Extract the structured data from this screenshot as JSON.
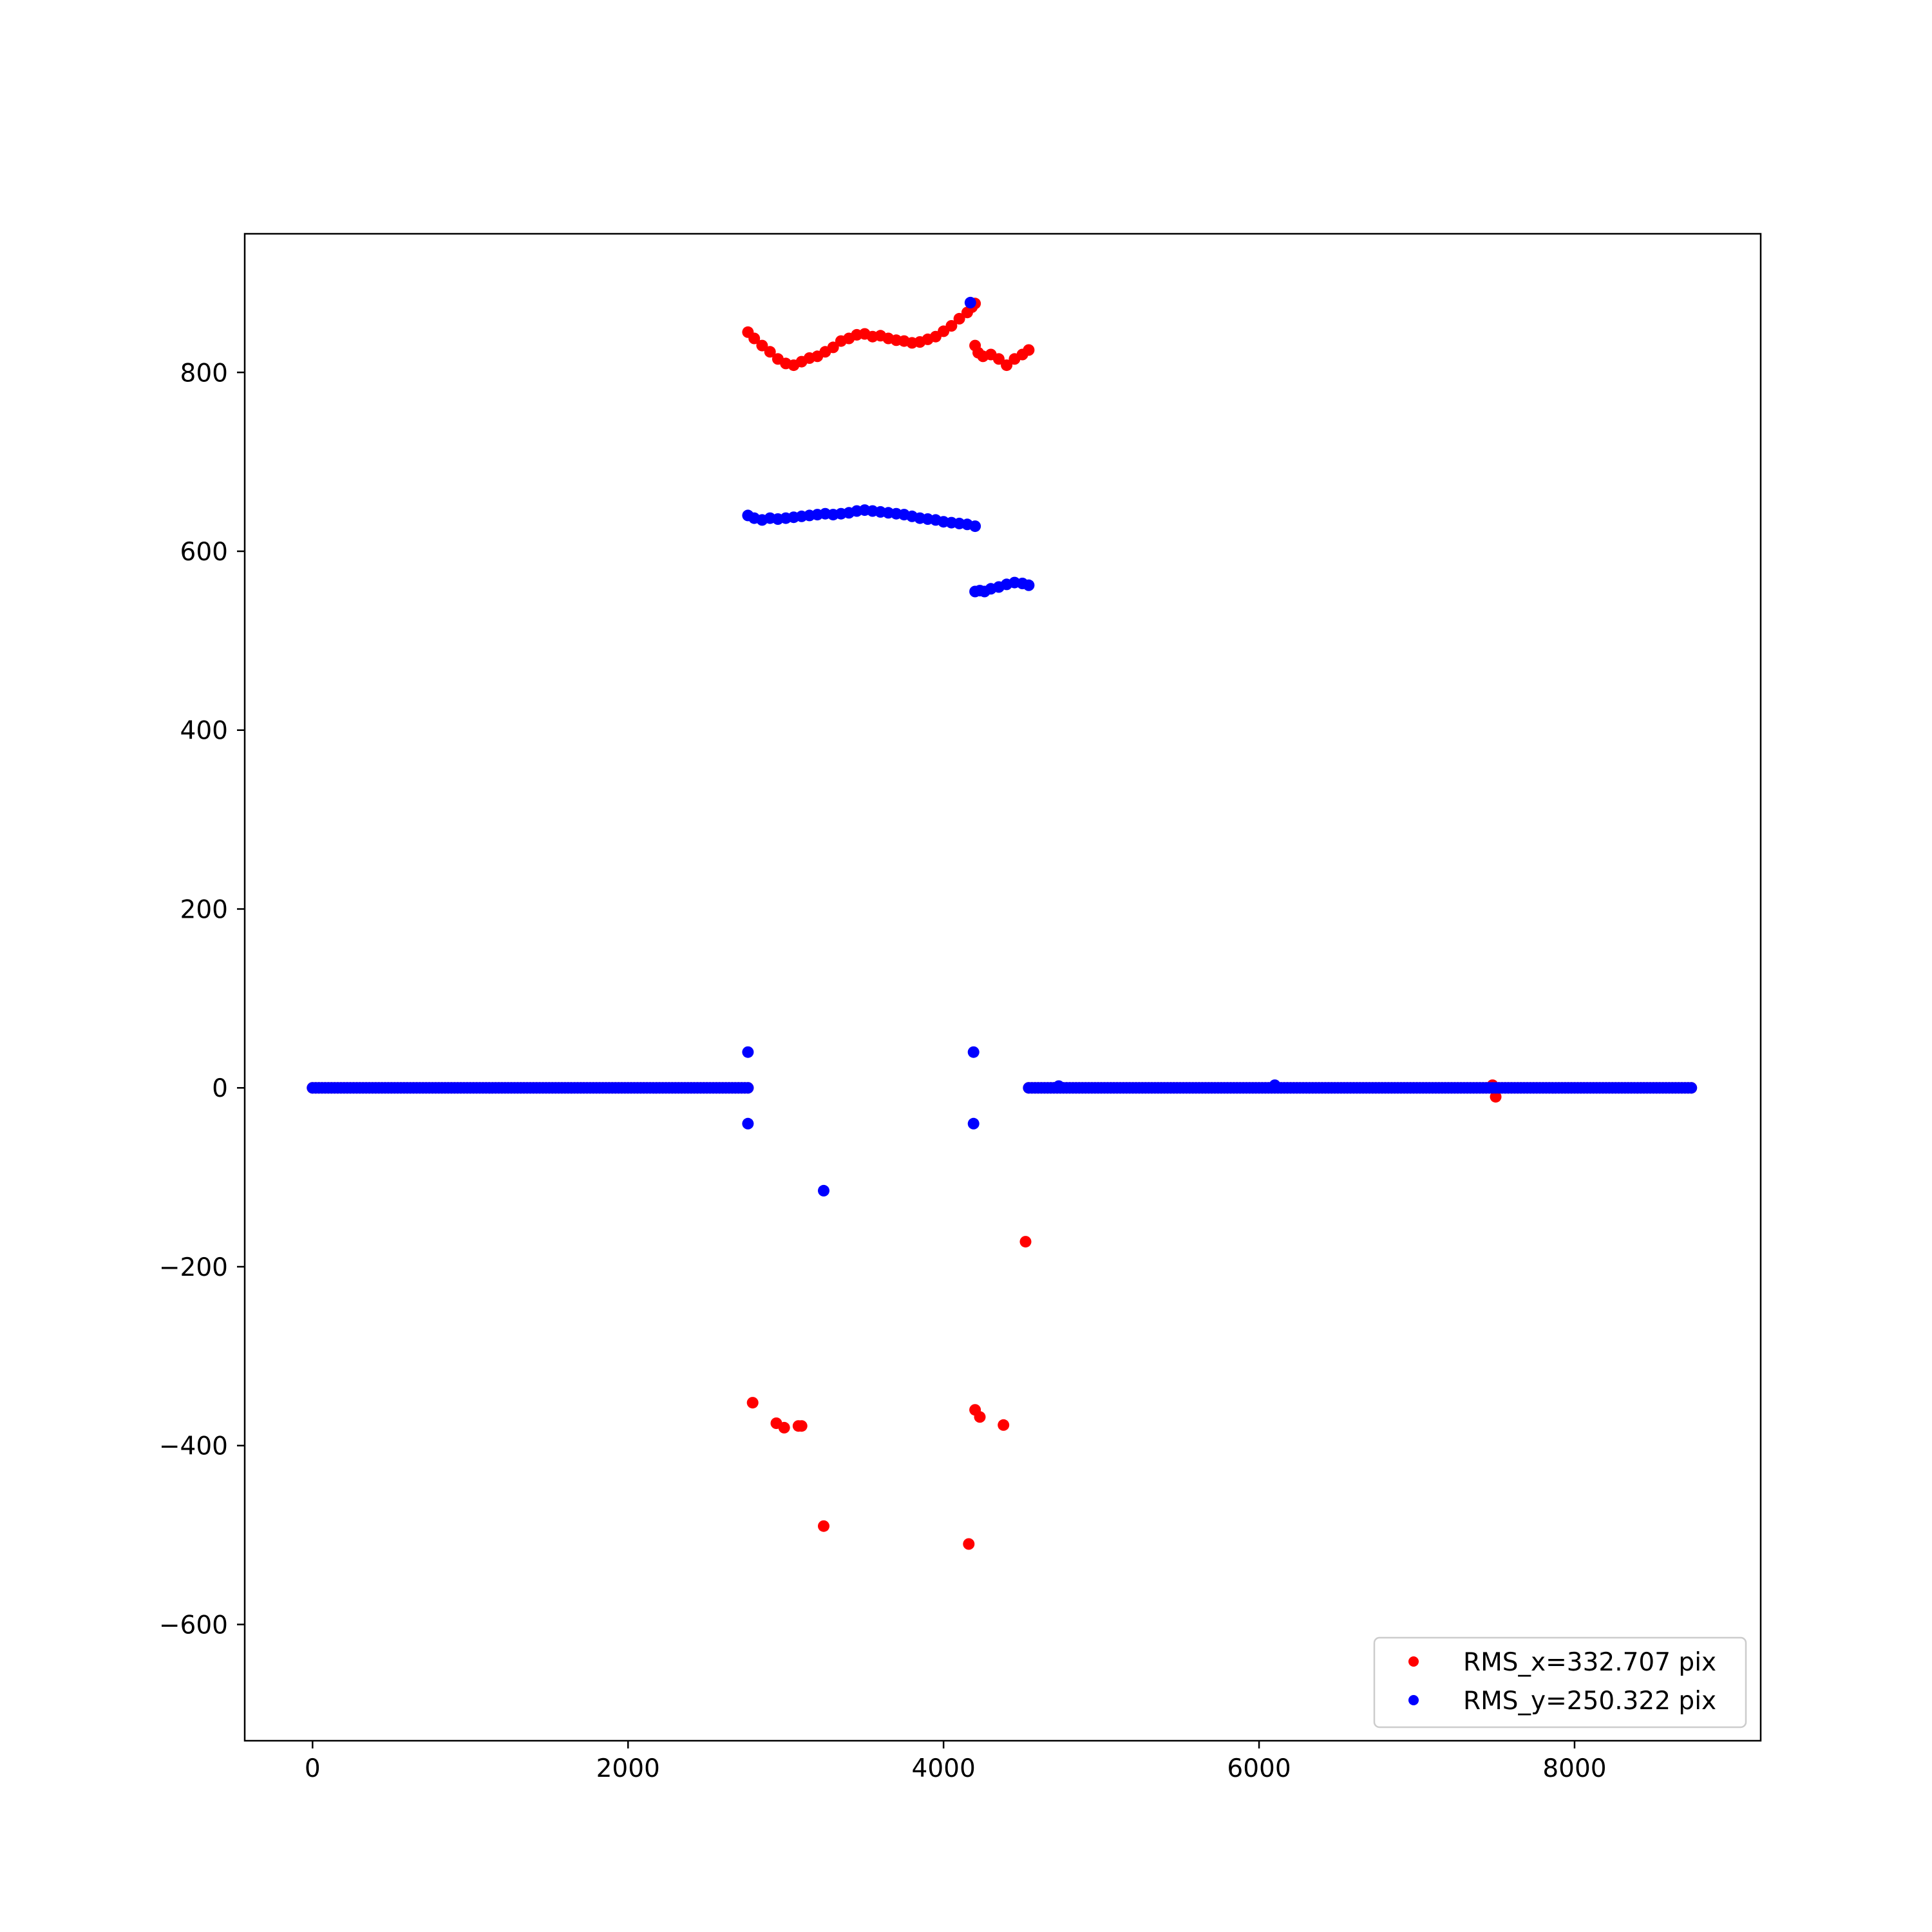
{
  "chart_data": {
    "type": "scatter",
    "title": "",
    "xlabel": "",
    "ylabel": "",
    "xlim": [
      -430,
      9180
    ],
    "ylim": [
      -730,
      955
    ],
    "grid": false,
    "legend_placement": "lower-right",
    "x_ticks": [
      0,
      2000,
      4000,
      6000,
      8000
    ],
    "x_tick_labels": [
      "0",
      "2000",
      "4000",
      "6000",
      "8000"
    ],
    "y_ticks": [
      -600,
      -400,
      -200,
      0,
      200,
      400,
      600,
      800
    ],
    "y_tick_labels": [
      "−600",
      "−400",
      "−200",
      "0",
      "200",
      "400",
      "600",
      "800"
    ],
    "series": [
      {
        "name": "RMS_x=332.707 pix",
        "color": "#ff0000",
        "marker": "dot",
        "segments": [
          {
            "x_start": 0,
            "x_end": 2760,
            "x_step": 20,
            "y": 0
          },
          {
            "x_start": 4540,
            "x_end": 8740,
            "x_step": 20,
            "y": 0
          }
        ],
        "points": [
          {
            "x": 2760,
            "y": 845
          },
          {
            "x": 2800,
            "y": 838
          },
          {
            "x": 2850,
            "y": 830
          },
          {
            "x": 2900,
            "y": 823
          },
          {
            "x": 2950,
            "y": 815
          },
          {
            "x": 3000,
            "y": 810
          },
          {
            "x": 3050,
            "y": 808
          },
          {
            "x": 3100,
            "y": 812
          },
          {
            "x": 3150,
            "y": 816
          },
          {
            "x": 3200,
            "y": 818
          },
          {
            "x": 3250,
            "y": 823
          },
          {
            "x": 3300,
            "y": 828
          },
          {
            "x": 3350,
            "y": 835
          },
          {
            "x": 3400,
            "y": 838
          },
          {
            "x": 3450,
            "y": 842
          },
          {
            "x": 3500,
            "y": 843
          },
          {
            "x": 3550,
            "y": 840
          },
          {
            "x": 3600,
            "y": 841
          },
          {
            "x": 3650,
            "y": 838
          },
          {
            "x": 3700,
            "y": 836
          },
          {
            "x": 3750,
            "y": 835
          },
          {
            "x": 3800,
            "y": 833
          },
          {
            "x": 3850,
            "y": 834
          },
          {
            "x": 3900,
            "y": 837
          },
          {
            "x": 3950,
            "y": 840
          },
          {
            "x": 4000,
            "y": 846
          },
          {
            "x": 4050,
            "y": 852
          },
          {
            "x": 4100,
            "y": 860
          },
          {
            "x": 4150,
            "y": 867
          },
          {
            "x": 4180,
            "y": 873
          },
          {
            "x": 4200,
            "y": 877
          },
          {
            "x": 4200,
            "y": 830
          },
          {
            "x": 4220,
            "y": 822
          },
          {
            "x": 4250,
            "y": 818
          },
          {
            "x": 4300,
            "y": 820
          },
          {
            "x": 4350,
            "y": 815
          },
          {
            "x": 4400,
            "y": 808
          },
          {
            "x": 4450,
            "y": 815
          },
          {
            "x": 4500,
            "y": 820
          },
          {
            "x": 4540,
            "y": 825
          },
          {
            "x": 2790,
            "y": -352
          },
          {
            "x": 2940,
            "y": -375
          },
          {
            "x": 2990,
            "y": -380
          },
          {
            "x": 3080,
            "y": -378
          },
          {
            "x": 3100,
            "y": -378
          },
          {
            "x": 3240,
            "y": -490
          },
          {
            "x": 4160,
            "y": -510
          },
          {
            "x": 4200,
            "y": -360
          },
          {
            "x": 4230,
            "y": -368
          },
          {
            "x": 4380,
            "y": -377
          },
          {
            "x": 4520,
            "y": -172
          },
          {
            "x": 7500,
            "y": -10
          },
          {
            "x": 7480,
            "y": 3
          }
        ]
      },
      {
        "name": "RMS_y=250.322 pix",
        "color": "#0000ff",
        "marker": "dot",
        "segments": [
          {
            "x_start": 0,
            "x_end": 2760,
            "x_step": 20,
            "y": 0
          },
          {
            "x_start": 4540,
            "x_end": 8740,
            "x_step": 20,
            "y": 0
          }
        ],
        "points": [
          {
            "x": 2760,
            "y": 640
          },
          {
            "x": 2800,
            "y": 637
          },
          {
            "x": 2850,
            "y": 635
          },
          {
            "x": 2900,
            "y": 637
          },
          {
            "x": 2950,
            "y": 636
          },
          {
            "x": 3000,
            "y": 637
          },
          {
            "x": 3050,
            "y": 638
          },
          {
            "x": 3100,
            "y": 639
          },
          {
            "x": 3150,
            "y": 640
          },
          {
            "x": 3200,
            "y": 641
          },
          {
            "x": 3250,
            "y": 642
          },
          {
            "x": 3300,
            "y": 641
          },
          {
            "x": 3350,
            "y": 642
          },
          {
            "x": 3400,
            "y": 643
          },
          {
            "x": 3450,
            "y": 645
          },
          {
            "x": 3500,
            "y": 646
          },
          {
            "x": 3550,
            "y": 645
          },
          {
            "x": 3600,
            "y": 644
          },
          {
            "x": 3650,
            "y": 643
          },
          {
            "x": 3700,
            "y": 642
          },
          {
            "x": 3750,
            "y": 641
          },
          {
            "x": 3800,
            "y": 639
          },
          {
            "x": 3850,
            "y": 637
          },
          {
            "x": 3900,
            "y": 636
          },
          {
            "x": 3950,
            "y": 635
          },
          {
            "x": 4000,
            "y": 633
          },
          {
            "x": 4050,
            "y": 632
          },
          {
            "x": 4100,
            "y": 631
          },
          {
            "x": 4150,
            "y": 630
          },
          {
            "x": 4200,
            "y": 628
          },
          {
            "x": 4200,
            "y": 555
          },
          {
            "x": 4230,
            "y": 556
          },
          {
            "x": 4260,
            "y": 555
          },
          {
            "x": 4300,
            "y": 558
          },
          {
            "x": 4350,
            "y": 560
          },
          {
            "x": 4400,
            "y": 563
          },
          {
            "x": 4450,
            "y": 565
          },
          {
            "x": 4500,
            "y": 564
          },
          {
            "x": 4540,
            "y": 562
          },
          {
            "x": 4170,
            "y": 878
          },
          {
            "x": 2760,
            "y": 40
          },
          {
            "x": 2760,
            "y": -40
          },
          {
            "x": 4190,
            "y": 40
          },
          {
            "x": 4190,
            "y": -40
          },
          {
            "x": 3240,
            "y": -115
          },
          {
            "x": 6100,
            "y": 3
          },
          {
            "x": 4730,
            "y": 2
          }
        ]
      }
    ]
  }
}
